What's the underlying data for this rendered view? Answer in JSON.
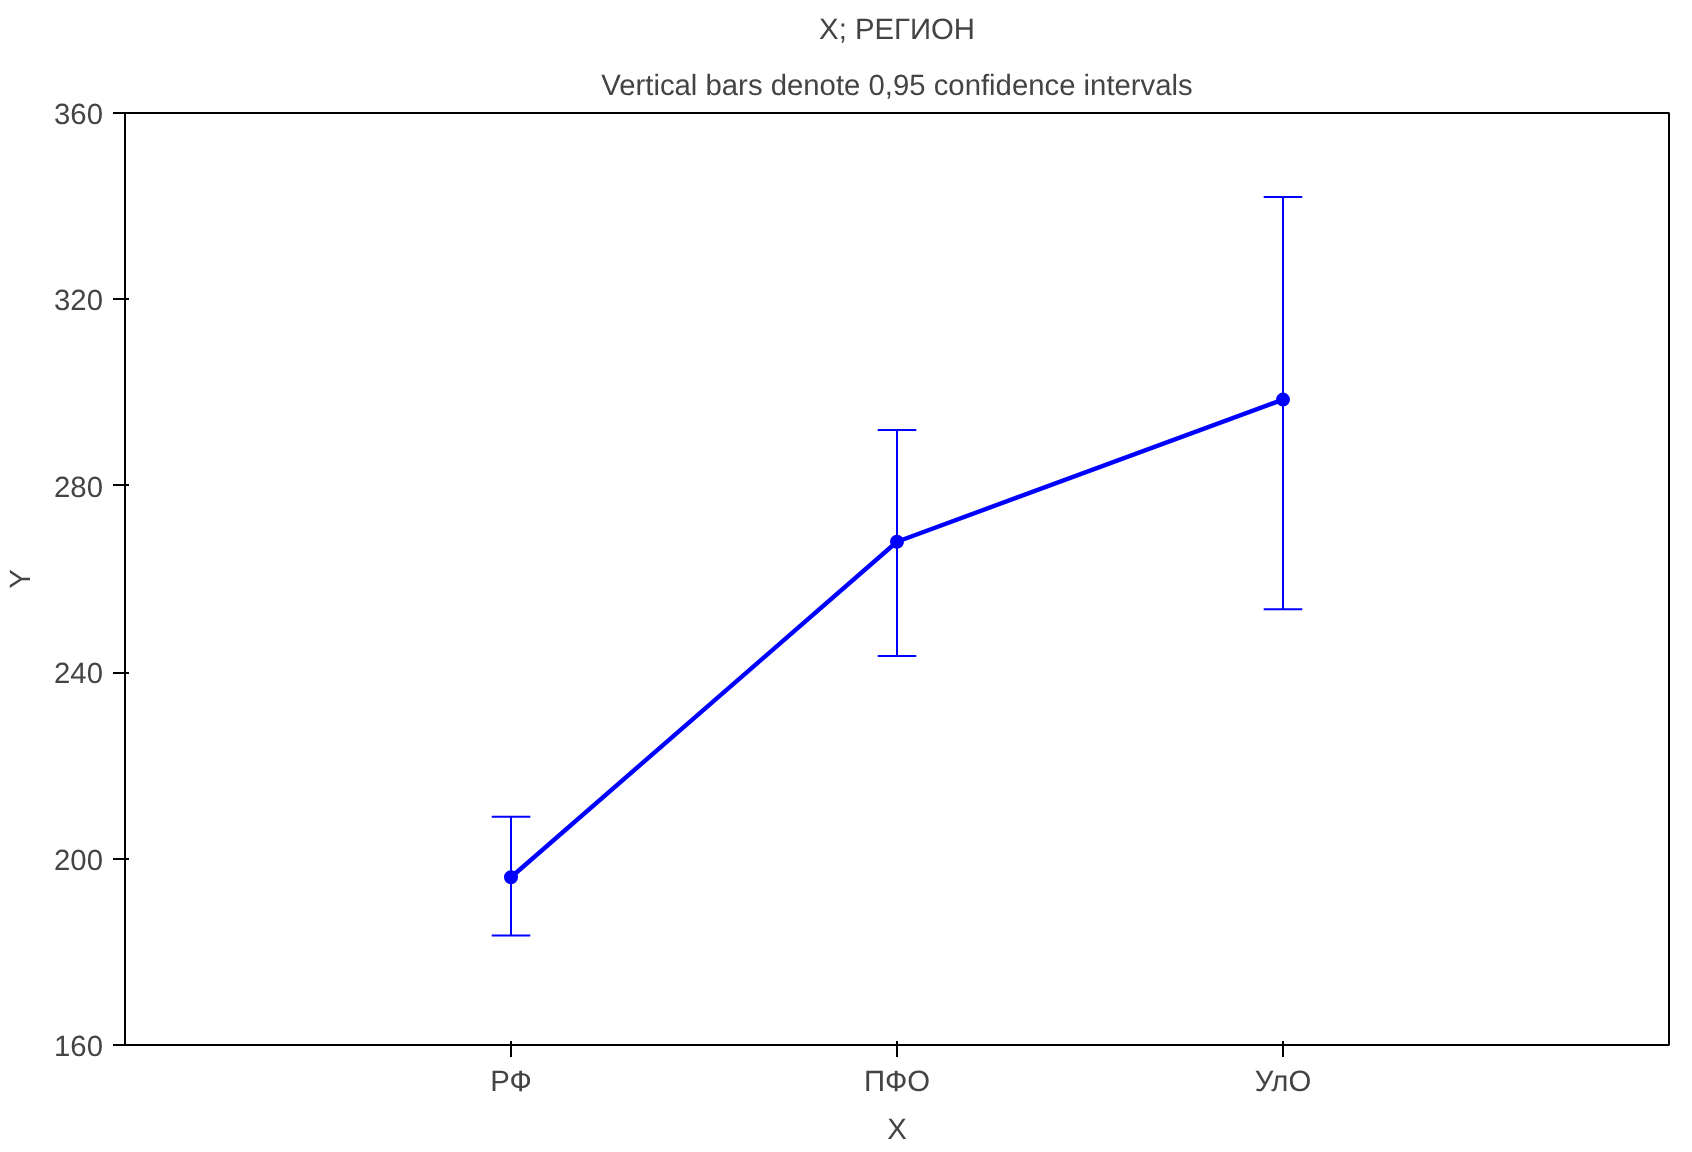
{
  "chart_data": {
    "type": "line",
    "title": "X; РЕГИОН",
    "subtitle": "Vertical bars denote 0,95 confidence intervals",
    "xlabel": "X",
    "ylabel": "Y",
    "categories": [
      "РФ",
      "ПФО",
      "УлО"
    ],
    "series": [
      {
        "color": "#0000ff",
        "values": [
          196,
          268,
          298.5
        ],
        "errors": [
          [
            183.5,
            209
          ],
          [
            243.5,
            292
          ],
          [
            253.5,
            342
          ]
        ]
      }
    ],
    "ylim": [
      160,
      360
    ],
    "yticks": [
      160,
      200,
      240,
      280,
      320,
      360
    ],
    "grid": false,
    "marker": "circle",
    "line_style": "solid"
  }
}
